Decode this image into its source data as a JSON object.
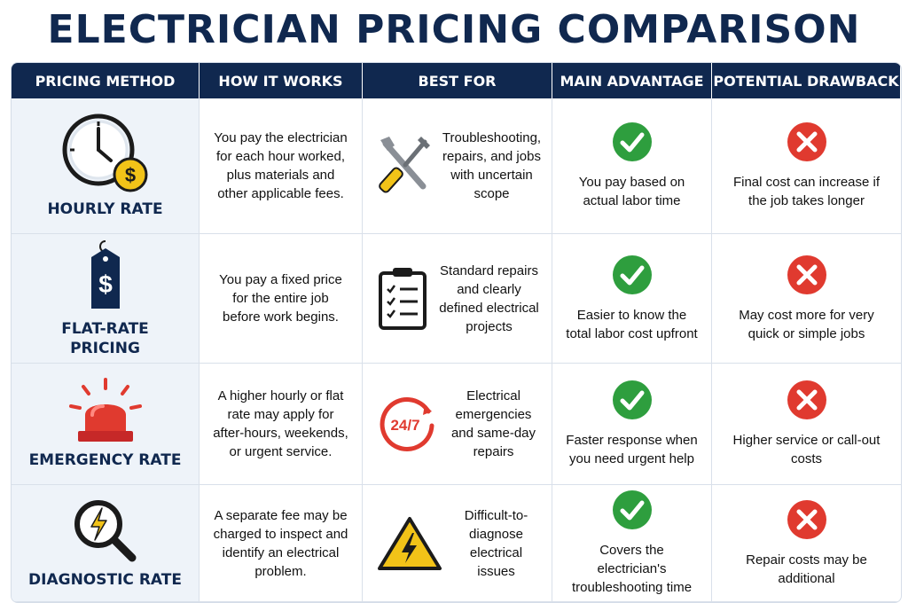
{
  "title": "ELECTRICIAN PRICING COMPARISON",
  "headers": [
    "PRICING METHOD",
    "HOW IT WORKS",
    "BEST FOR",
    "MAIN ADVANTAGE",
    "POTENTIAL DRAWBACK"
  ],
  "rows": [
    {
      "method": "HOURLY RATE",
      "method_icon": "clock-dollar-icon",
      "how": "You pay the electrician for each hour worked, plus materials and other applicable fees.",
      "best_icon": "tools-icon",
      "best": "Troubleshooting, repairs, and jobs with uncertain scope",
      "advantage": "You pay based on actual labor time",
      "drawback": "Final cost can increase if the job takes longer"
    },
    {
      "method": "FLAT-RATE PRICING",
      "method_icon": "price-tag-icon",
      "how": "You pay a fixed price for the entire job before work begins.",
      "best_icon": "checklist-icon",
      "best": "Standard repairs and clearly defined electrical projects",
      "advantage": "Easier to know the total labor cost upfront",
      "drawback": "May cost more for very quick or simple jobs"
    },
    {
      "method": "EMERGENCY RATE",
      "method_icon": "emergency-light-icon",
      "how": "A higher hourly or flat rate may apply for after-hours, weekends, or urgent service.",
      "best_icon": "24-7-icon",
      "best_icon_text": "24/7",
      "best": "Electrical emergencies and same-day repairs",
      "advantage": "Faster response when you need urgent help",
      "drawback": "Higher service or call-out costs"
    },
    {
      "method": "DIAGNOSTIC RATE",
      "method_icon": "magnifier-bolt-icon",
      "how": "A separate fee may be charged to inspect and identify an electrical problem.",
      "best_icon": "warning-bolt-icon",
      "best": "Difficult-to-diagnose electrical issues",
      "advantage": "Covers the electrician's troubleshooting time",
      "drawback": "Repair costs may be additional"
    }
  ],
  "colors": {
    "navy": "#10284f",
    "green": "#2e9e3e",
    "red": "#e03a2f",
    "yellow": "#f2c318",
    "method_bg": "#eef3f9"
  }
}
